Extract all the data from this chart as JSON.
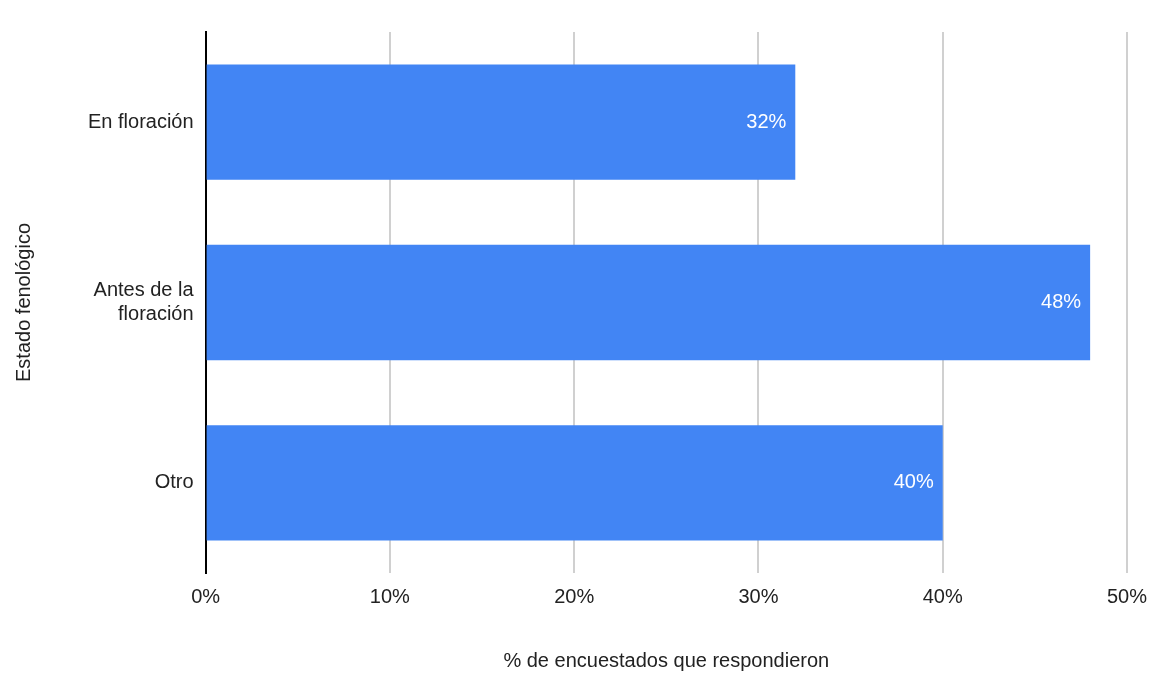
{
  "chart_data": {
    "type": "bar",
    "orientation": "horizontal",
    "xlabel": "% de encuestados que respondieron",
    "ylabel": "Estado fenológico",
    "categories": [
      "En floración",
      "Antes de la floración",
      "Otro"
    ],
    "values": [
      32,
      48,
      40
    ],
    "value_labels": [
      "32%",
      "48%",
      "40%"
    ],
    "color": "#4285f4",
    "xlim": [
      0,
      50
    ],
    "xticks": [
      {
        "value": 0,
        "label": "0%"
      },
      {
        "value": 10,
        "label": "10%"
      },
      {
        "value": 20,
        "label": "20%"
      },
      {
        "value": 30,
        "label": "30%"
      },
      {
        "value": 40,
        "label": "40%"
      },
      {
        "value": 50,
        "label": "50%"
      }
    ],
    "grid": "x",
    "legend": false
  }
}
